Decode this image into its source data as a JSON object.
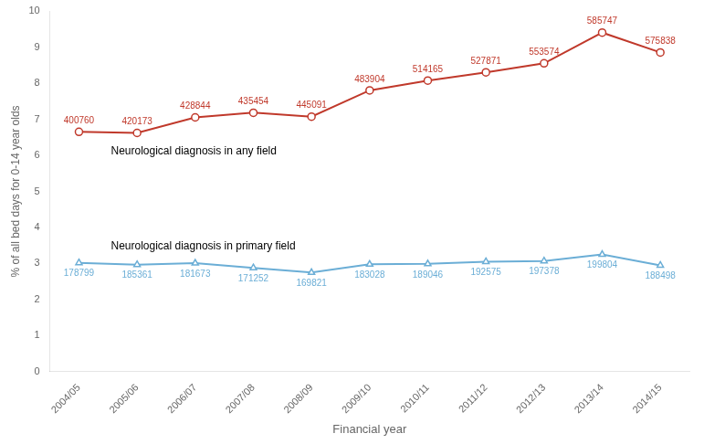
{
  "chart_data": {
    "type": "line",
    "categories": [
      "2004/05",
      "2005/06",
      "2006/07",
      "2007/08",
      "2008/09",
      "2009/10",
      "2010/11",
      "2011/12",
      "2012/13",
      "2013/14",
      "2014/15"
    ],
    "series": [
      {
        "name": "Neurological diagnosis in any field",
        "color": "#c0392b",
        "marker": "circle",
        "values": [
          6.65,
          6.62,
          7.05,
          7.18,
          7.07,
          7.8,
          8.07,
          8.3,
          8.55,
          9.4,
          8.85
        ],
        "counts": [
          400760,
          420173,
          428844,
          435454,
          445091,
          483904,
          514165,
          527871,
          553574,
          585747,
          575838
        ]
      },
      {
        "name": "Neurological diagnosis in primary field",
        "color": "#6baed6",
        "marker": "triangle",
        "values": [
          3.02,
          2.97,
          3.01,
          2.88,
          2.75,
          2.98,
          2.99,
          3.05,
          3.07,
          3.25,
          2.95
        ],
        "counts": [
          178799,
          185361,
          181673,
          171252,
          169821,
          183028,
          189046,
          192575,
          197378,
          199804,
          188498
        ]
      }
    ],
    "xlabel": "Financial year",
    "ylabel": "% of all bed days for 0-14 year olds",
    "ylim": [
      0,
      10
    ],
    "yticks": [
      0,
      1,
      2,
      3,
      4,
      5,
      6,
      7,
      8,
      9,
      10
    ],
    "grid": false
  }
}
